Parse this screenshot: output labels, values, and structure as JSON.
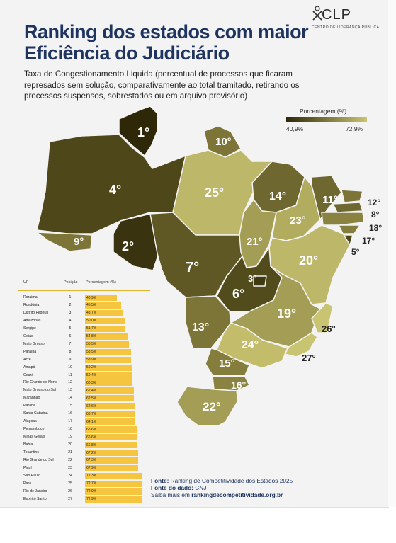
{
  "logo": {
    "text": "CLP",
    "subtitle": "CENTRO DE LIDERANÇA PÚBLICA"
  },
  "title": "Ranking dos estados com maior Eficiência do Judiciário",
  "subtitle": "Taxa de Congestionamento Liquida (percentual de processos que ficaram represados sem solução, comparativamente ao total tramitado, retirando os processos suspensos, sobrestados ou em arquivo provisório)",
  "legend": {
    "title": "Porcentagem (%)",
    "min_label": "40,9%",
    "max_label": "72,9%",
    "min_color": "#2e2808",
    "max_color": "#c9c471"
  },
  "table_headers": {
    "uf": "UF",
    "pos": "Posição",
    "pct": "Porcentagem (%)"
  },
  "bar_color": "#f6c53f",
  "chart_data": {
    "type": "bar",
    "title": "Ranking dos estados com maior Eficiência do Judiciário",
    "xlabel": "",
    "ylabel": "Porcentagem (%)",
    "xlim": [
      0,
      72.9
    ],
    "categories": [
      "Roraima",
      "Rondônia",
      "Distrito Federal",
      "Amazonas",
      "Sergipe",
      "Goiás",
      "Mato Grosso",
      "Paraíba",
      "Acre",
      "Amapá",
      "Ceará",
      "Rio Grande do Norte",
      "Mato Grosso do Sul",
      "Maranhão",
      "Paraná",
      "Santa Catarina",
      "Alagoas",
      "Pernambuco",
      "Minas Gerais",
      "Bahia",
      "Tocantins",
      "Rio Grande do Sul",
      "Piauí",
      "São Paulo",
      "Pará",
      "Rio de Janeiro",
      "Espírito Santo"
    ],
    "positions": [
      1,
      2,
      3,
      4,
      5,
      6,
      7,
      8,
      9,
      10,
      11,
      12,
      13,
      14,
      15,
      16,
      17,
      18,
      19,
      20,
      21,
      22,
      23,
      24,
      25,
      26,
      27
    ],
    "values": [
      40.9,
      45.5,
      48.7,
      50.0,
      51.7,
      54.8,
      55.5,
      58.5,
      58.9,
      59.2,
      59.4,
      60.3,
      62.4,
      62.5,
      62.6,
      63.7,
      64.1,
      65.6,
      66.6,
      66.8,
      67.2,
      67.3,
      67.9,
      72.3,
      72.7,
      72.9,
      72.9
    ],
    "labels": [
      "40,9%",
      "45,5%",
      "48,7%",
      "50,0%",
      "51,7%",
      "54,8%",
      "55,5%",
      "58,5%",
      "58,9%",
      "59,2%",
      "59,4%",
      "60,3%",
      "62,4%",
      "62,5%",
      "62,6%",
      "63,7%",
      "64,1%",
      "65,6%",
      "66,6%",
      "66,8%",
      "67,2%",
      "67,3%",
      "67,9%",
      "72,3%",
      "72,7%",
      "72,9%",
      "72,9%"
    ],
    "map_ranks": [
      "1°",
      "2°",
      "3°",
      "4°",
      "5°",
      "6°",
      "7°",
      "8°",
      "9°",
      "10°",
      "11°",
      "12°",
      "13°",
      "14°",
      "15°",
      "16°",
      "17°",
      "18°",
      "19°",
      "20°",
      "21°",
      "22°",
      "23°",
      "24°",
      "25°",
      "26°",
      "27°"
    ]
  },
  "source": {
    "fonte_label": "Fonte:",
    "fonte_text": "Ranking de Competitividade dos Estados 2025",
    "dado_label": "Fonte do dado:",
    "dado_text": "CNJ",
    "saiba_text": "Saiba mais em",
    "saiba_link": "rankingdecompetitividade.org.br"
  }
}
